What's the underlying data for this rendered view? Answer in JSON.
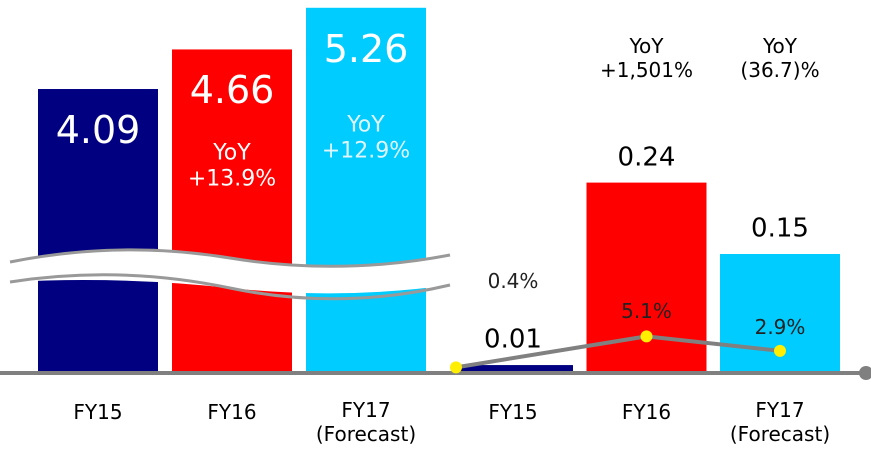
{
  "chart_data": [
    {
      "type": "bar",
      "categories": [
        "FY15",
        "FY16",
        "FY17\n(Forecast)"
      ],
      "values": [
        4.09,
        4.66,
        5.26
      ],
      "colors": [
        "#000080",
        "#ff0000",
        "#00ccff"
      ],
      "ylim": [
        0,
        5.3
      ],
      "annotations": [
        "YoY\n+13.9%",
        "YoY\n+12.9%"
      ]
    },
    {
      "type": "bar",
      "categories": [
        "FY15",
        "FY16",
        "FY17\n(Forecast)"
      ],
      "values": [
        0.01,
        0.24,
        0.15
      ],
      "colors": [
        "#000080",
        "#ff0000",
        "#00ccff"
      ],
      "ylim": [
        0,
        0.3
      ],
      "annotations": [
        "YoY\n+1,501%",
        "YoY\n(36.7)%"
      ],
      "series": [
        {
          "type": "line",
          "axis": "y2",
          "color": "#808080",
          "marker_color": "#ffee00",
          "values": [
            0.4,
            5.1,
            2.9
          ],
          "value_labels": [
            "0.4%",
            "5.1%",
            "2.9%"
          ]
        }
      ],
      "y2lim": [
        0,
        10
      ]
    }
  ]
}
